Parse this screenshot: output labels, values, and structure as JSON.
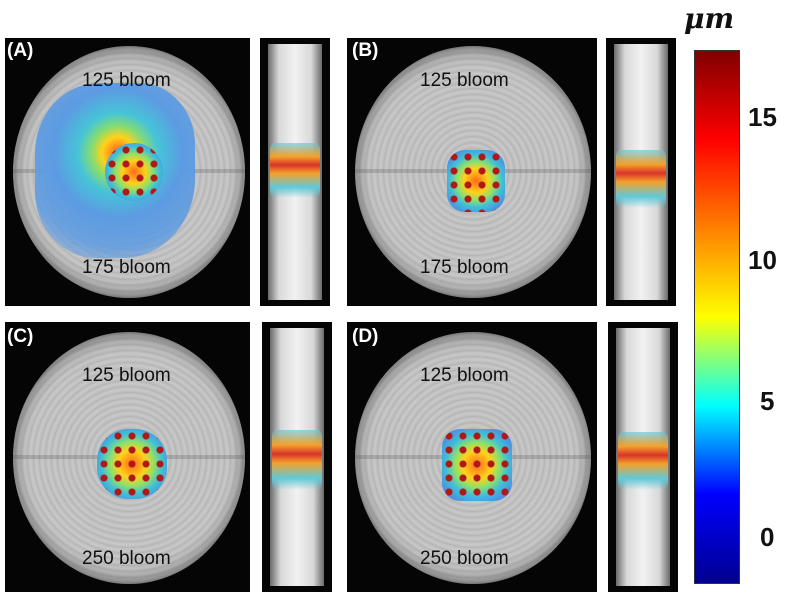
{
  "panels": [
    {
      "tag": "(A)",
      "top_label": "125 bloom",
      "bottom_label": "175 bloom"
    },
    {
      "tag": "(B)",
      "top_label": "125 bloom",
      "bottom_label": "175 bloom"
    },
    {
      "tag": "(C)",
      "top_label": "125 bloom",
      "bottom_label": "250 bloom"
    },
    {
      "tag": "(D)",
      "top_label": "125 bloom",
      "bottom_label": "250 bloom"
    }
  ],
  "colorbar": {
    "unit": "μm",
    "ticks": [
      "15",
      "10",
      "5",
      "0"
    ],
    "colormap": [
      "#00008f",
      "#0000ff",
      "#00ffff",
      "#ffff00",
      "#ff8000",
      "#ff0000",
      "#800000"
    ]
  }
}
